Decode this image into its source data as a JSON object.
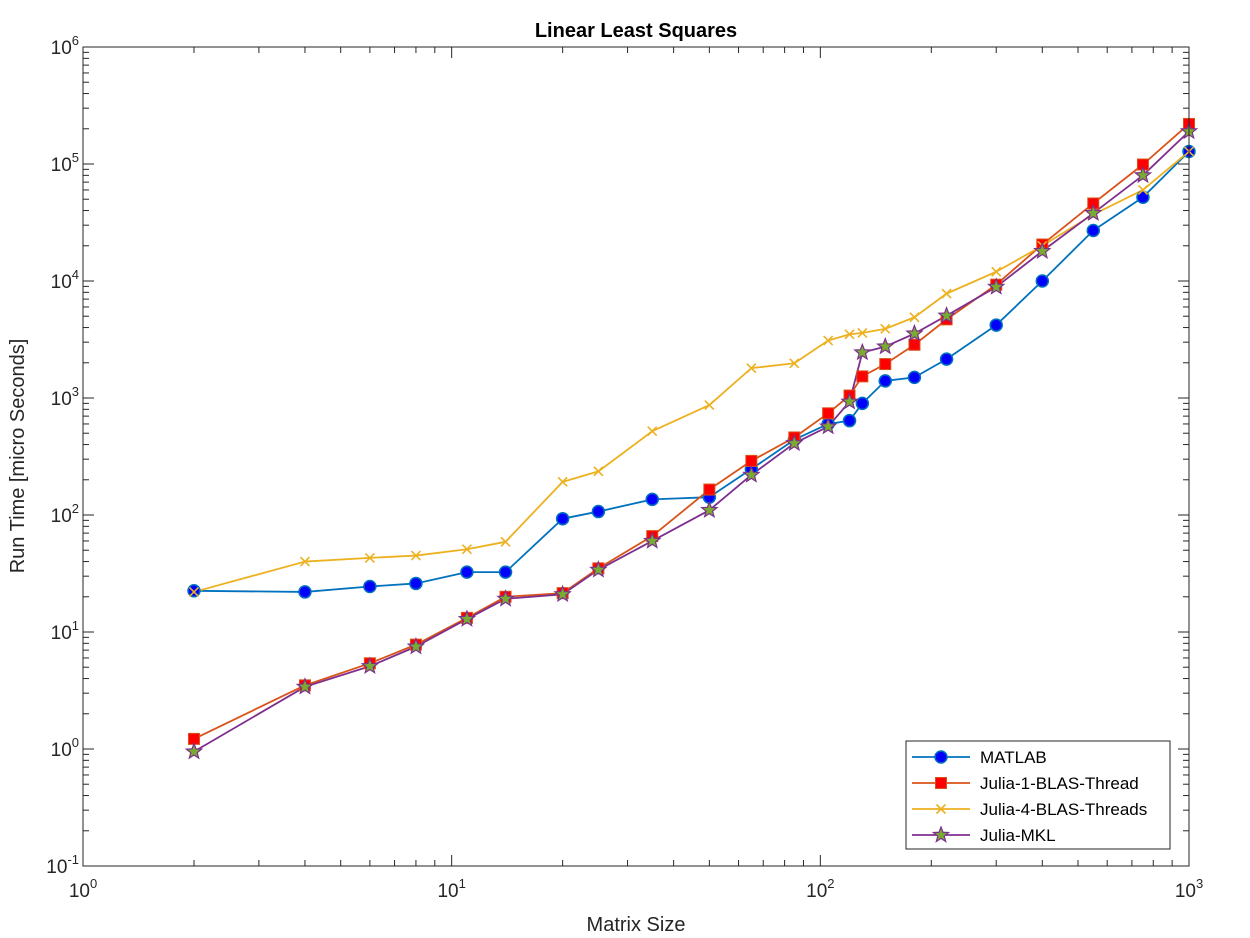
{
  "chart_data": {
    "type": "line",
    "title": "Linear Least Squares",
    "xlabel": "Matrix Size",
    "ylabel": "Run Time  [micro Seconds]",
    "xscale": "log",
    "yscale": "log",
    "xlim": [
      1,
      1000
    ],
    "ylim": [
      0.1,
      1000000
    ],
    "x_ticks": [
      {
        "base": "10",
        "exp": "0"
      },
      {
        "base": "10",
        "exp": "1"
      },
      {
        "base": "10",
        "exp": "2"
      },
      {
        "base": "10",
        "exp": "3"
      }
    ],
    "y_ticks": [
      {
        "base": "10",
        "exp": "-1"
      },
      {
        "base": "10",
        "exp": "0"
      },
      {
        "base": "10",
        "exp": "1"
      },
      {
        "base": "10",
        "exp": "2"
      },
      {
        "base": "10",
        "exp": "3"
      },
      {
        "base": "10",
        "exp": "4"
      },
      {
        "base": "10",
        "exp": "5"
      },
      {
        "base": "10",
        "exp": "6"
      }
    ],
    "grid": false,
    "legend_position": "bottom-right",
    "series": [
      {
        "name": "MATLAB",
        "color": "#0072BD",
        "marker": "circle",
        "marker_fill": "#0000FF",
        "points": [
          [
            2,
            22.5
          ],
          [
            4,
            22
          ],
          [
            6,
            24.5
          ],
          [
            8,
            26
          ],
          [
            11,
            32.5
          ],
          [
            14,
            32.5
          ],
          [
            20,
            93
          ],
          [
            25,
            107
          ],
          [
            35,
            136
          ],
          [
            50,
            142
          ],
          [
            65,
            247
          ],
          [
            85,
            440
          ],
          [
            105,
            600
          ],
          [
            120,
            640
          ],
          [
            130,
            900
          ],
          [
            150,
            1400
          ],
          [
            180,
            1500
          ],
          [
            220,
            2150
          ],
          [
            300,
            4200
          ],
          [
            400,
            10000
          ],
          [
            550,
            27000
          ],
          [
            750,
            52000
          ],
          [
            1000,
            128000
          ]
        ]
      },
      {
        "name": "Julia-1-BLAS-Thread",
        "color": "#D95319",
        "marker": "square",
        "marker_fill": "#FF0000",
        "points": [
          [
            2,
            1.22
          ],
          [
            4,
            3.5
          ],
          [
            6,
            5.4
          ],
          [
            8,
            7.8
          ],
          [
            11,
            13.2
          ],
          [
            14,
            20
          ],
          [
            20,
            21.5
          ],
          [
            25,
            35
          ],
          [
            35,
            66
          ],
          [
            50,
            165
          ],
          [
            65,
            290
          ],
          [
            85,
            460
          ],
          [
            105,
            740
          ],
          [
            120,
            1050
          ],
          [
            130,
            1530
          ],
          [
            150,
            1950
          ],
          [
            180,
            2850
          ],
          [
            220,
            4700
          ],
          [
            300,
            9300
          ],
          [
            400,
            20500
          ],
          [
            550,
            46000
          ],
          [
            750,
            99000
          ],
          [
            1000,
            220000
          ]
        ]
      },
      {
        "name": "Julia-4-BLAS-Threads",
        "color": "#EDB120",
        "marker": "x",
        "marker_fill": "none",
        "points": [
          [
            2,
            22
          ],
          [
            4,
            40
          ],
          [
            6,
            43
          ],
          [
            8,
            45
          ],
          [
            11,
            51
          ],
          [
            14,
            59
          ],
          [
            20,
            192
          ],
          [
            25,
            236
          ],
          [
            35,
            520
          ],
          [
            50,
            870
          ],
          [
            65,
            1800
          ],
          [
            85,
            1980
          ],
          [
            105,
            3100
          ],
          [
            120,
            3500
          ],
          [
            130,
            3600
          ],
          [
            150,
            3900
          ],
          [
            180,
            4900
          ],
          [
            220,
            7800
          ],
          [
            300,
            12000
          ],
          [
            400,
            20000
          ],
          [
            550,
            37000
          ],
          [
            750,
            60000
          ],
          [
            1000,
            128000
          ]
        ]
      },
      {
        "name": "Julia-MKL",
        "color": "#7E2F8E",
        "marker": "star",
        "marker_fill": "#77AC30",
        "points": [
          [
            2,
            0.95
          ],
          [
            4,
            3.4
          ],
          [
            6,
            5.1
          ],
          [
            8,
            7.5
          ],
          [
            11,
            12.9
          ],
          [
            14,
            19.2
          ],
          [
            20,
            21
          ],
          [
            25,
            34
          ],
          [
            35,
            60
          ],
          [
            50,
            110
          ],
          [
            65,
            220
          ],
          [
            85,
            410
          ],
          [
            105,
            570
          ],
          [
            120,
            930
          ],
          [
            130,
            2450
          ],
          [
            150,
            2750
          ],
          [
            180,
            3550
          ],
          [
            220,
            5050
          ],
          [
            300,
            8900
          ],
          [
            400,
            18000
          ],
          [
            550,
            38000
          ],
          [
            750,
            80000
          ],
          [
            1000,
            190000
          ]
        ]
      }
    ]
  }
}
